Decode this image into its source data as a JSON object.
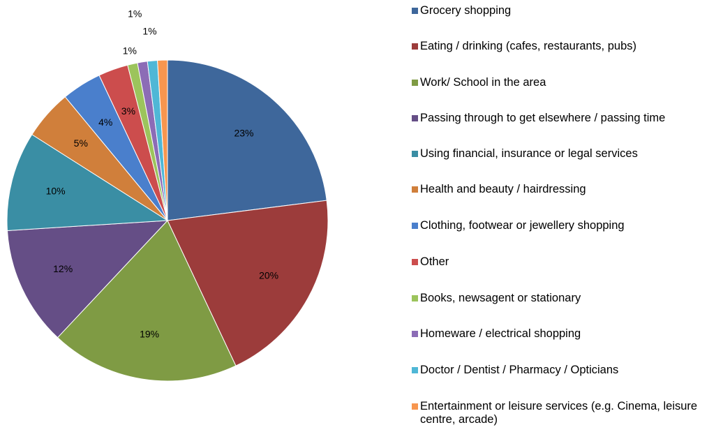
{
  "chart_data": {
    "type": "pie",
    "categories": [
      "Grocery shopping",
      "Eating / drinking (cafes, restaurants,  pubs)",
      "Work/ School in the area",
      "Passing through to get elsewhere  / passing time",
      "Using financial, insurance  or legal services",
      "Health and beauty / hairdressing",
      "Clothing, footwear or jewellery  shopping",
      "Other",
      "Books, newsagent or stationary",
      "Homeware  /  electrical shopping",
      "Doctor / Dentist / Pharmacy / Opticians",
      "Entertainment  or leisure services (e.g. Cinema, leisure centre, arcade)"
    ],
    "values": [
      23,
      20,
      19,
      12,
      10,
      5,
      4,
      3,
      1,
      1,
      1,
      1
    ],
    "value_labels": [
      "23%",
      "20%",
      "19%",
      "12%",
      "10%",
      "5%",
      "4%",
      "3%",
      "1%",
      "1%",
      "1%",
      "1%"
    ],
    "colors": [
      "#3e679b",
      "#9c3c3b",
      "#7f9b44",
      "#654e86",
      "#3a8ea4",
      "#d07f3b",
      "#4a7fcc",
      "#cc4d4d",
      "#9cc45c",
      "#8c6cb6",
      "#4fb7d6",
      "#f7964f"
    ],
    "legend": "right"
  }
}
